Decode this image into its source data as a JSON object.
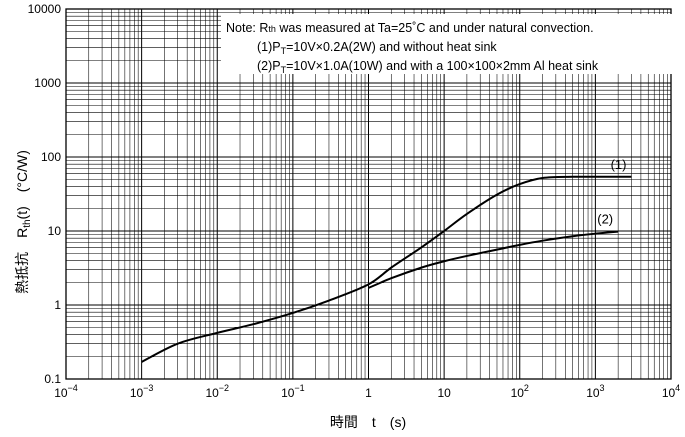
{
  "chart_data": {
    "type": "line",
    "title": "",
    "xscale": "log",
    "yscale": "log",
    "xlim": [
      0.0001,
      10000
    ],
    "ylim": [
      0.1,
      10000
    ],
    "grid": true,
    "xlabel": "時間　t　(s)",
    "ylabel": {
      "prefix": "熱抵抗　R",
      "sub": "th",
      "suffix": "(t)　(°C/W)"
    },
    "x_ticks": [
      {
        "base": "10",
        "exp": "−4"
      },
      {
        "base": "10",
        "exp": "−3"
      },
      {
        "base": "10",
        "exp": "−2"
      },
      {
        "base": "10",
        "exp": "−1"
      },
      {
        "base": "1",
        "exp": ""
      },
      {
        "base": "10",
        "exp": ""
      },
      {
        "base": "10",
        "exp": "2"
      },
      {
        "base": "10",
        "exp": "3"
      },
      {
        "base": "10",
        "exp": "4"
      }
    ],
    "y_ticks": [
      "0.1",
      "1",
      "10",
      "100",
      "1000",
      "10000"
    ],
    "note": {
      "line1_prefix": "Note: R",
      "line1_sub": "th",
      "line1_suffix": " was measured at Ta=25˚C and under natural convection.",
      "line2_prefix": "(1)P",
      "line2_sub": "T",
      "line2_suffix": "=10V×0.2A(2W) and without heat sink",
      "line3_prefix": "(2)P",
      "line3_sub": "T",
      "line3_suffix": "=10V×1.0A(10W) and with a 100×100×2mm Al heat sink"
    },
    "series": [
      {
        "name": "(1)",
        "x": [
          0.001,
          0.003,
          0.01,
          0.03,
          0.1,
          0.3,
          1,
          2,
          5,
          10,
          20,
          50,
          100,
          200,
          500,
          1000,
          3000
        ],
        "y": [
          0.17,
          0.3,
          0.42,
          0.55,
          0.78,
          1.15,
          1.9,
          3.2,
          6.0,
          10,
          17,
          31,
          43,
          52,
          54,
          54,
          54
        ]
      },
      {
        "name": "(2)",
        "x": [
          1,
          2,
          5,
          10,
          20,
          50,
          100,
          200,
          500,
          1000,
          2000
        ],
        "y": [
          1.7,
          2.3,
          3.2,
          3.9,
          4.6,
          5.6,
          6.5,
          7.4,
          8.5,
          9.2,
          9.8
        ]
      }
    ]
  }
}
